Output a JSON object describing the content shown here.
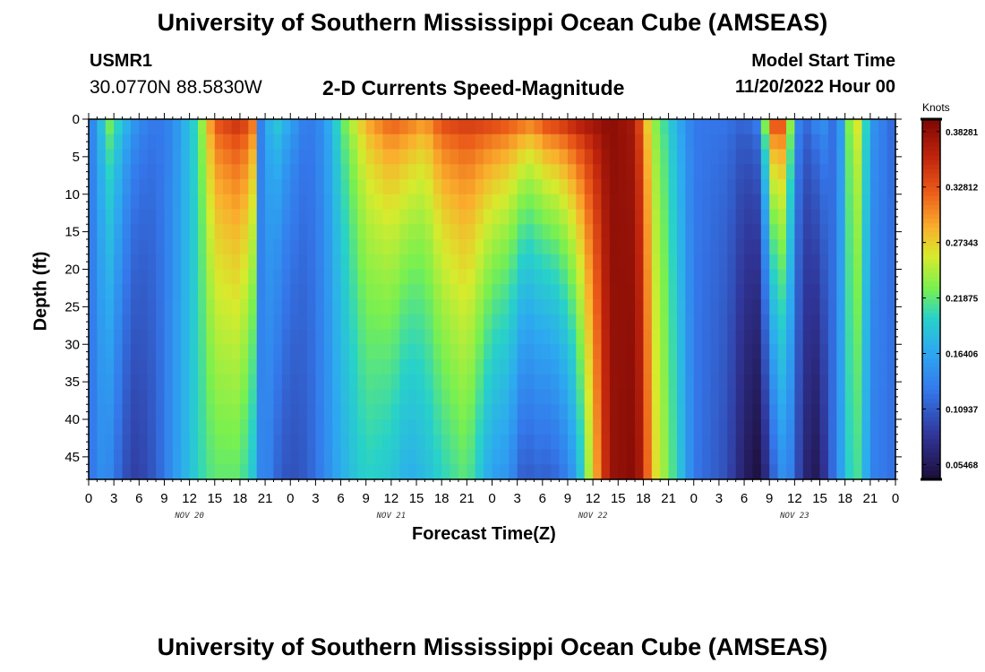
{
  "header": {
    "title": "University of Southern Mississippi Ocean Cube (AMSEAS)",
    "station_id": "USMR1",
    "coords": "30.0770N  88.5830W",
    "plot_title": "2-D Currents Speed-Magnitude",
    "model_start_label": "Model Start Time",
    "model_start_value": "11/20/2022 Hour 00"
  },
  "footer": {
    "title": "University of Southern Mississippi Ocean Cube (AMSEAS)"
  },
  "chart_data": {
    "type": "heatmap",
    "title": "2-D Currents Speed-Magnitude",
    "xlabel": "Forecast Time(Z)",
    "ylabel": "Depth (ft)",
    "x_range_hours": [
      0,
      96
    ],
    "ylim": [
      0,
      48
    ],
    "x_tick_labels": [
      "0",
      "3",
      "6",
      "9",
      "12",
      "15",
      "18",
      "21",
      "0",
      "3",
      "6",
      "9",
      "12",
      "15",
      "18",
      "21",
      "0",
      "3",
      "6",
      "9",
      "12",
      "15",
      "18",
      "21",
      "0",
      "3",
      "6",
      "9",
      "12",
      "15",
      "18",
      "21",
      "0"
    ],
    "day_labels": [
      "NOV 20",
      "NOV 21",
      "NOV 22",
      "NOV 23"
    ],
    "y_ticks": [
      0,
      5,
      10,
      15,
      20,
      25,
      30,
      35,
      40,
      45
    ],
    "colorbar": {
      "title": "Knots",
      "min": 0.04,
      "max": 0.395,
      "tick_values": [
        0.38281,
        0.32812,
        0.27343,
        0.21875,
        0.16406,
        0.10937,
        0.05468
      ],
      "tick_labels": [
        "0.38281",
        "0.32812",
        "0.27343",
        "0.21875",
        "0.16406",
        "0.10937",
        "0.05468"
      ]
    },
    "profile_nodes_hours": [
      0,
      1,
      2,
      4,
      5,
      6,
      8,
      10,
      13,
      15,
      18,
      19.5,
      20,
      21,
      22,
      24,
      26,
      28,
      30,
      33,
      36,
      38,
      40,
      42,
      45,
      48,
      50,
      52,
      53,
      54,
      56,
      58,
      62,
      65,
      66,
      67,
      70,
      72,
      76,
      78,
      80,
      81,
      83,
      84,
      86,
      87,
      88,
      89,
      90,
      91,
      92,
      93,
      94,
      95,
      96
    ],
    "speed_surface_knots": [
      0.16,
      0.13,
      0.25,
      0.2,
      0.17,
      0.15,
      0.13,
      0.14,
      0.21,
      0.34,
      0.37,
      0.33,
      0.12,
      0.15,
      0.21,
      0.17,
      0.13,
      0.15,
      0.22,
      0.3,
      0.34,
      0.33,
      0.31,
      0.35,
      0.36,
      0.36,
      0.35,
      0.34,
      0.33,
      0.36,
      0.37,
      0.39,
      0.39,
      0.37,
      0.3,
      0.24,
      0.17,
      0.13,
      0.13,
      0.12,
      0.15,
      0.36,
      0.35,
      0.15,
      0.12,
      0.18,
      0.13,
      0.12,
      0.19,
      0.28,
      0.26,
      0.15,
      0.15,
      0.12,
      0.12
    ],
    "speed_bottom_knots": [
      0.12,
      0.14,
      0.15,
      0.11,
      0.09,
      0.09,
      0.11,
      0.15,
      0.2,
      0.22,
      0.22,
      0.19,
      0.13,
      0.15,
      0.12,
      0.1,
      0.11,
      0.14,
      0.17,
      0.2,
      0.19,
      0.17,
      0.18,
      0.2,
      0.22,
      0.16,
      0.15,
      0.1,
      0.12,
      0.11,
      0.12,
      0.16,
      0.38,
      0.39,
      0.36,
      0.28,
      0.2,
      0.13,
      0.1,
      0.06,
      0.04,
      0.1,
      0.16,
      0.11,
      0.05,
      0.06,
      0.1,
      0.14,
      0.18,
      0.22,
      0.2,
      0.14,
      0.13,
      0.13,
      0.12
    ]
  }
}
